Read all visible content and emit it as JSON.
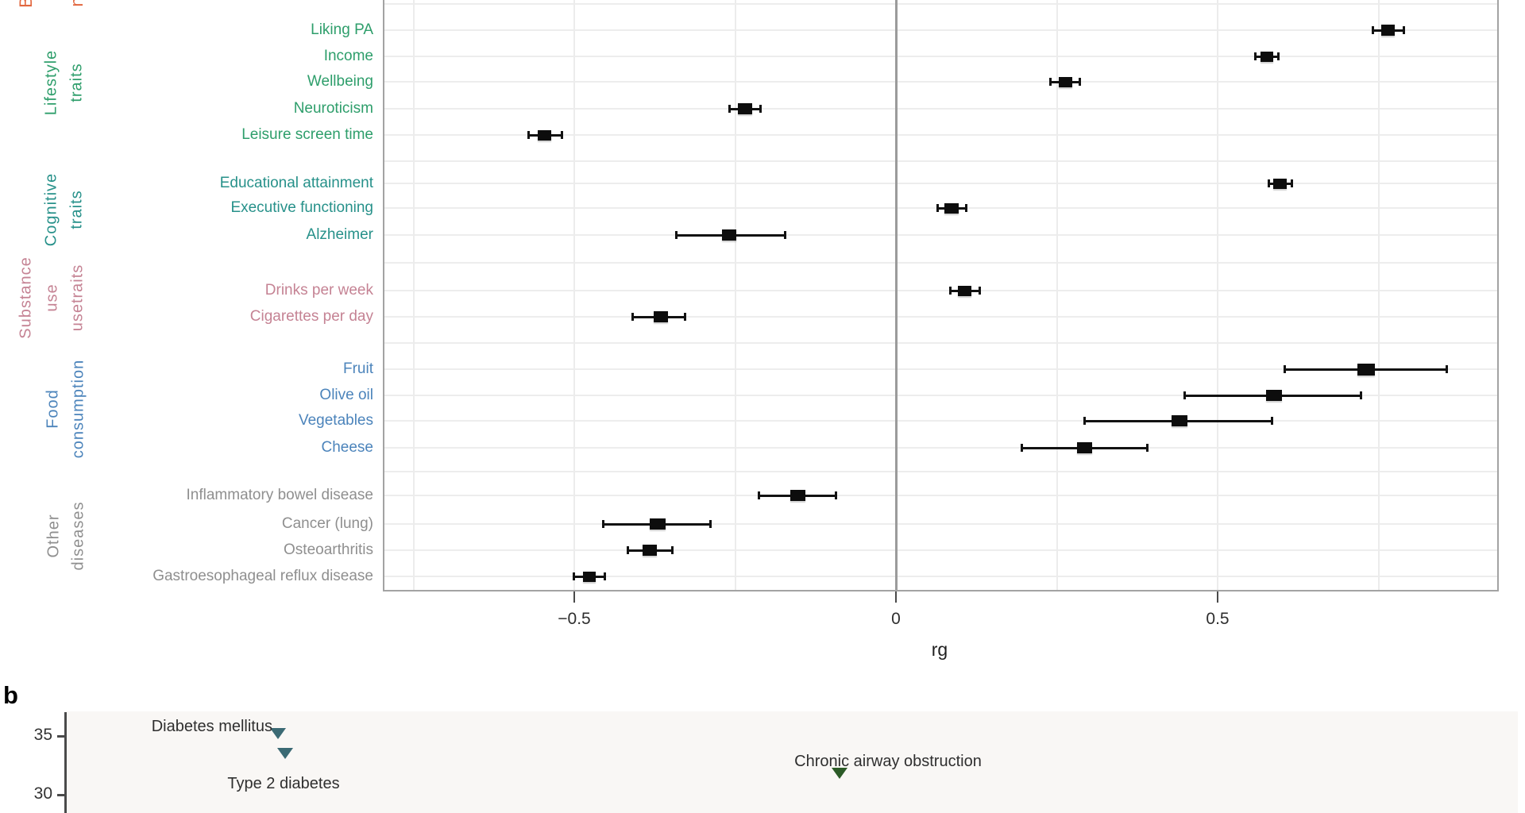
{
  "figure": {
    "panel_b_label": "b",
    "cropped_top_letters": [
      "B",
      "n"
    ],
    "colors": {
      "lifestyle": "#2e9e6b",
      "cognitive": "#27918a",
      "substance": "#c58394",
      "food": "#4c84bb",
      "other": "#8f8f8f",
      "cropped_orange": "#e2673f",
      "marker": "#0d0d0d",
      "zero_line": "#9b9b9b",
      "grid": "#ededed",
      "border": "#a3a3a3",
      "axis_text": "#2e2e2e",
      "triangle_teal": "#3b6a74",
      "triangle_green": "#2c5b27",
      "panelb_bg": "#f9f7f5"
    }
  },
  "chart_data": [
    {
      "type": "scatter",
      "subtype": "forest-plot",
      "xlabel": "rg",
      "xlim": [
        -0.8,
        0.93
      ],
      "grid": true,
      "xticks": [
        {
          "rg": -0.5,
          "label": "−0.5"
        },
        {
          "rg": 0,
          "label": "0"
        },
        {
          "rg": 0.5,
          "label": "0.5"
        }
      ],
      "minor_vgrid_rg": [
        -0.75,
        -0.5,
        -0.25,
        0.25,
        0.5,
        0.75
      ],
      "groups": [
        {
          "label": "Lifestyle traits",
          "label_lines": [
            "Lifestyle",
            "traits"
          ],
          "color_key": "lifestyle",
          "items": [
            {
              "trait": "Liking PA",
              "rg": 0.765,
              "ci": [
                0.741,
                0.79
              ],
              "mw": 17,
              "mh": 14
            },
            {
              "trait": "Income",
              "rg": 0.577,
              "ci": [
                0.558,
                0.595
              ],
              "mw": 16,
              "mh": 13
            },
            {
              "trait": "Wellbeing",
              "rg": 0.263,
              "ci": [
                0.24,
                0.286
              ],
              "mw": 17,
              "mh": 13
            },
            {
              "trait": "Neuroticism",
              "rg": -0.235,
              "ci": [
                -0.259,
                -0.21
              ],
              "mw": 18,
              "mh": 14
            },
            {
              "trait": "Leisure screen time",
              "rg": -0.546,
              "ci": [
                -0.572,
                -0.519
              ],
              "mw": 17,
              "mh": 13
            }
          ]
        },
        {
          "label": "Cognitive traits",
          "label_lines": [
            "Cognitive",
            "traits"
          ],
          "color_key": "cognitive",
          "items": [
            {
              "trait": "Educational attainment",
              "rg": 0.597,
              "ci": [
                0.579,
                0.616
              ],
              "mw": 17,
              "mh": 13
            },
            {
              "trait": "Executive functioning",
              "rg": 0.087,
              "ci": [
                0.064,
                0.11
              ],
              "mw": 18,
              "mh": 13
            },
            {
              "trait": "Alzheimer",
              "rg": -0.259,
              "ci": [
                -0.342,
                -0.172
              ],
              "mw": 18,
              "mh": 14
            }
          ]
        },
        {
          "label": "Substance use traits",
          "label_lines": [
            "Substance",
            "use",
            "usetraits"
          ],
          "color_key": "substance",
          "items": [
            {
              "trait": "Drinks per week",
              "rg": 0.107,
              "ci": [
                0.084,
                0.131
              ],
              "mw": 17,
              "mh": 13
            },
            {
              "trait": "Cigarettes per day",
              "rg": -0.365,
              "ci": [
                -0.41,
                -0.327
              ],
              "mw": 18,
              "mh": 14
            }
          ]
        },
        {
          "label": "Food consumption",
          "label_lines": [
            "Food",
            "consumption"
          ],
          "color_key": "food",
          "items": [
            {
              "trait": "Fruit",
              "rg": 0.731,
              "ci": [
                0.604,
                0.857
              ],
              "mw": 22,
              "mh": 15
            },
            {
              "trait": "Olive oil",
              "rg": 0.588,
              "ci": [
                0.448,
                0.723
              ],
              "mw": 20,
              "mh": 14
            },
            {
              "trait": "Vegetables",
              "rg": 0.441,
              "ci": [
                0.293,
                0.585
              ],
              "mw": 20,
              "mh": 14
            },
            {
              "trait": "Cheese",
              "rg": 0.293,
              "ci": [
                0.195,
                0.391
              ],
              "mw": 19,
              "mh": 14
            }
          ]
        },
        {
          "label": "Other diseases",
          "label_lines": [
            "Other",
            "diseases"
          ],
          "color_key": "other",
          "items": [
            {
              "trait": "Inflammatory bowel disease",
              "rg": -0.153,
              "ci": [
                -0.214,
                -0.093
              ],
              "mw": 19,
              "mh": 14
            },
            {
              "trait": "Cancer (lung)",
              "rg": -0.37,
              "ci": [
                -0.456,
                -0.288
              ],
              "mw": 20,
              "mh": 14
            },
            {
              "trait": "Osteoarthritis",
              "rg": -0.383,
              "ci": [
                -0.417,
                -0.347
              ],
              "mw": 18,
              "mh": 14
            },
            {
              "trait": "Gastroesophageal reflux disease",
              "rg": -0.477,
              "ci": [
                -0.501,
                -0.452
              ],
              "mw": 16,
              "mh": 13
            }
          ]
        }
      ]
    },
    {
      "type": "scatter",
      "subtype": "labeled-points",
      "marker": "triangle-down",
      "yticks": [
        {
          "value": 35,
          "label": "35"
        },
        {
          "value": 30,
          "label": "30"
        }
      ],
      "points": [
        {
          "label": "Diabetes mellitus",
          "y": 35.2,
          "color_key": "triangle_teal"
        },
        {
          "label": "Type 2 diabetes",
          "y": 33.5,
          "color_key": "triangle_teal"
        },
        {
          "label": "Chronic airway obstruction",
          "y": 31.8,
          "color_key": "triangle_green"
        }
      ]
    }
  ]
}
